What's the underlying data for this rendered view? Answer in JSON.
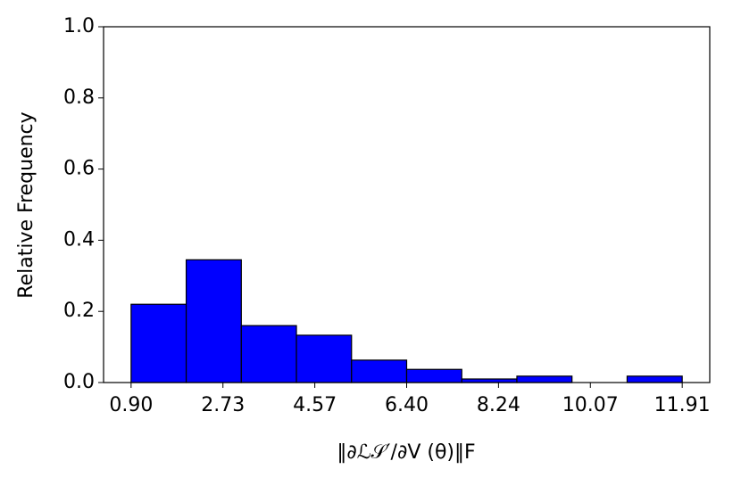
{
  "chart_data": {
    "type": "histogram",
    "xlabel": "‖∂ℒ𝒮′/∂V (θ)‖F",
    "ylabel": "Relative Frequency",
    "bins": [
      0.9,
      2.001,
      3.102,
      4.203,
      5.304,
      6.405,
      7.506,
      8.607,
      9.708,
      10.809,
      11.91
    ],
    "values": [
      0.22,
      0.345,
      0.16,
      0.133,
      0.063,
      0.037,
      0.01,
      0.018,
      0,
      0.018
    ],
    "color": "#0000ff",
    "edgecolor": "#000000",
    "xlim": [
      0.35,
      12.46
    ],
    "xticks": [
      {
        "value": 0.9,
        "label": "0.90"
      },
      {
        "value": 2.735,
        "label": "2.73"
      },
      {
        "value": 4.57,
        "label": "4.57"
      },
      {
        "value": 6.405,
        "label": "6.40"
      },
      {
        "value": 8.24,
        "label": "8.24"
      },
      {
        "value": 10.075,
        "label": "10.07"
      },
      {
        "value": 11.91,
        "label": "11.91"
      }
    ],
    "ylim": [
      0,
      1
    ],
    "yticks": [
      {
        "value": 0,
        "label": "0.0"
      },
      0.2,
      0.4,
      0.6,
      0.8,
      {
        "value": 1,
        "label": "1.0"
      }
    ]
  }
}
